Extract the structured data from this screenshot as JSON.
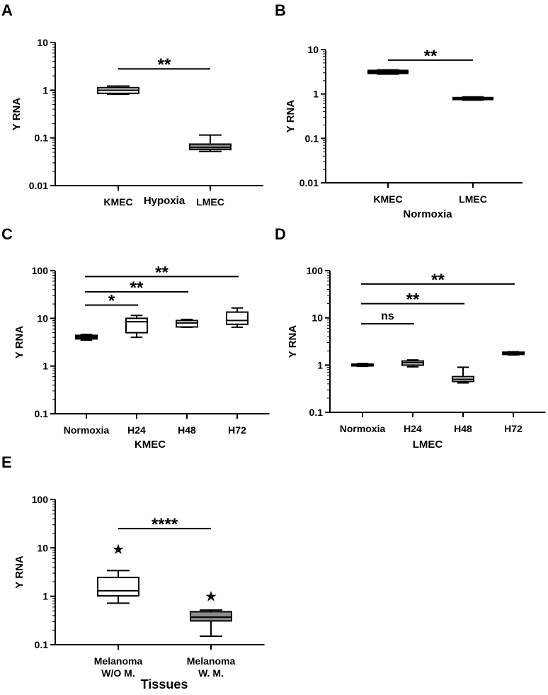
{
  "chart_data": [
    {
      "panel": "A",
      "type": "box",
      "ylabel": "Y RNA",
      "xlabel": "Hypoxia",
      "yscale": "log",
      "ylim": [
        0.01,
        10
      ],
      "yticks": [
        "10",
        "1",
        "0.1",
        "0.01"
      ],
      "categories": [
        "KMEC",
        "LMEC"
      ],
      "series": [
        {
          "name": "KMEC",
          "min": 0.82,
          "q1": 0.86,
          "median": 1.0,
          "q3": 1.13,
          "max": 1.22,
          "fill": "#ffffff"
        },
        {
          "name": "LMEC",
          "min": 0.052,
          "q1": 0.057,
          "median": 0.063,
          "q3": 0.074,
          "max": 0.115,
          "fill": "#8c8c8c"
        }
      ],
      "significance": [
        {
          "from": 0,
          "to": 1,
          "y": 2.8,
          "label": "**"
        }
      ]
    },
    {
      "panel": "B",
      "type": "box",
      "ylabel": "Y RNA",
      "xlabel": "Normoxia",
      "yscale": "log",
      "ylim": [
        0.01,
        10
      ],
      "yticks": [
        "10",
        "1",
        "0.1",
        "0.01"
      ],
      "categories": [
        "KMEC",
        "LMEC"
      ],
      "series": [
        {
          "name": "KMEC",
          "min": 2.8,
          "q1": 2.9,
          "median": 3.1,
          "q3": 3.4,
          "max": 3.5,
          "fill": "#000000"
        },
        {
          "name": "LMEC",
          "min": 0.73,
          "q1": 0.75,
          "median": 0.79,
          "q3": 0.83,
          "max": 0.86,
          "fill": "#000000"
        }
      ],
      "significance": [
        {
          "from": 0,
          "to": 1,
          "y": 5.8,
          "label": "**"
        }
      ]
    },
    {
      "panel": "C",
      "type": "box",
      "ylabel": "Y RNA",
      "xlabel": "KMEC",
      "yscale": "log",
      "ylim": [
        0.1,
        100
      ],
      "yticks": [
        "100",
        "10",
        "1",
        "0.1"
      ],
      "categories": [
        "Normoxia",
        "H24",
        "H48",
        "H72"
      ],
      "series": [
        {
          "name": "Normoxia",
          "min": 3.5,
          "q1": 3.7,
          "median": 4.0,
          "q3": 4.4,
          "max": 4.6,
          "fill": "#000000"
        },
        {
          "name": "H24",
          "min": 4.0,
          "q1": 5.0,
          "median": 8.5,
          "q3": 10.0,
          "max": 11.5,
          "fill": "#ffffff"
        },
        {
          "name": "H48",
          "min": 6.5,
          "q1": 6.6,
          "median": 8.0,
          "q3": 9.0,
          "max": 9.5,
          "fill": "#ffffff"
        },
        {
          "name": "H72",
          "min": 6.5,
          "q1": 7.5,
          "median": 9.0,
          "q3": 13.5,
          "max": 16.5,
          "fill": "#ffffff"
        }
      ],
      "significance": [
        {
          "from": 0,
          "to": 1,
          "y": 19,
          "label": "*"
        },
        {
          "from": 0,
          "to": 2,
          "y": 36,
          "label": "**"
        },
        {
          "from": 0,
          "to": 3,
          "y": 75,
          "label": "**"
        }
      ]
    },
    {
      "panel": "D",
      "type": "box",
      "ylabel": "Y RNA",
      "xlabel": "LMEC",
      "yscale": "log",
      "ylim": [
        0.1,
        100
      ],
      "yticks": [
        "100",
        "10",
        "1",
        "0.1"
      ],
      "categories": [
        "Normoxia",
        "H24",
        "H48",
        "H72"
      ],
      "series": [
        {
          "name": "Normoxia",
          "min": 0.94,
          "q1": 0.96,
          "median": 1.0,
          "q3": 1.05,
          "max": 1.08,
          "fill": "#000000"
        },
        {
          "name": "H24",
          "min": 0.92,
          "q1": 1.0,
          "median": 1.12,
          "q3": 1.22,
          "max": 1.28,
          "fill": "#ffffff"
        },
        {
          "name": "H48",
          "min": 0.42,
          "q1": 0.45,
          "median": 0.5,
          "q3": 0.57,
          "max": 0.9,
          "fill": "#ffffff"
        },
        {
          "name": "H72",
          "min": 1.65,
          "q1": 1.68,
          "median": 1.78,
          "q3": 1.88,
          "max": 1.92,
          "fill": "#000000"
        }
      ],
      "significance": [
        {
          "from": 0,
          "to": 1,
          "y": 7.5,
          "label": "ns"
        },
        {
          "from": 0,
          "to": 2,
          "y": 20,
          "label": "**"
        },
        {
          "from": 0,
          "to": 3,
          "y": 52,
          "label": "**"
        }
      ]
    },
    {
      "panel": "E",
      "type": "box",
      "ylabel": "Y RNA",
      "xlabel": "Tissues",
      "yscale": "log",
      "ylim": [
        0.1,
        100
      ],
      "yticks": [
        "100",
        "10",
        "1",
        "0.1"
      ],
      "categories": [
        "Melanoma W/O M.",
        "Melanoma W. M."
      ],
      "category_lines": [
        [
          "Melanoma",
          "W/O M."
        ],
        [
          "Melanoma",
          "W. M."
        ]
      ],
      "series": [
        {
          "name": "Melanoma W/O M.",
          "min": 0.72,
          "q1": 1.02,
          "median": 1.3,
          "q3": 2.45,
          "max": 3.4,
          "outlier": 9.5,
          "fill": "#ffffff"
        },
        {
          "name": "Melanoma W. M.",
          "min": 0.15,
          "q1": 0.31,
          "median": 0.37,
          "q3": 0.48,
          "max": 0.52,
          "outlier": 1.0,
          "fill": "#8c8c8c"
        }
      ],
      "significance": [
        {
          "from": 0,
          "to": 1,
          "y": 25,
          "label": "****"
        }
      ]
    }
  ]
}
